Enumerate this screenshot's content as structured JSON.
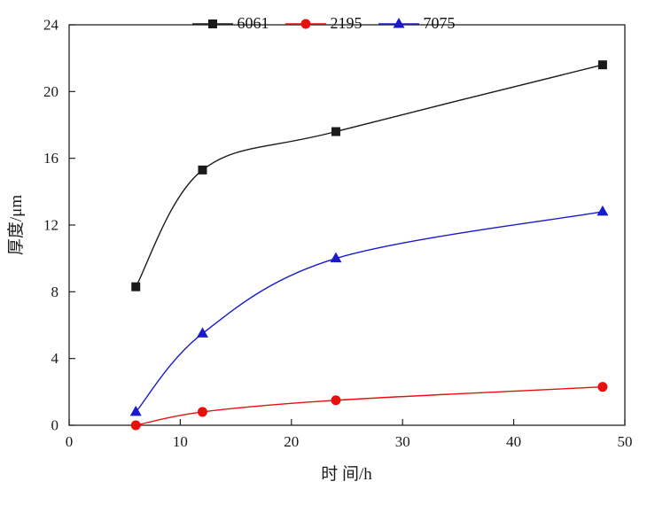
{
  "figure": {
    "background": "#ffffff"
  },
  "chart_data": {
    "type": "line",
    "title": "",
    "xlabel": "时 间/h",
    "ylabel": "厚度/μm",
    "xlim": [
      0,
      50
    ],
    "ylim": [
      0,
      24
    ],
    "xticks": [
      0,
      10,
      20,
      30,
      40,
      50
    ],
    "yticks": [
      0,
      4,
      8,
      12,
      16,
      20,
      24
    ],
    "x": [
      6,
      12,
      24,
      48
    ],
    "series": [
      {
        "name": "6061",
        "color": "#1a1a1a",
        "marker": "square",
        "values": [
          8.3,
          15.3,
          17.6,
          21.6
        ]
      },
      {
        "name": "2195",
        "color": "#e8100c",
        "marker": "circle",
        "values": [
          0.0,
          0.8,
          1.5,
          2.3
        ]
      },
      {
        "name": "7075",
        "color": "#1a1acc",
        "marker": "triangle",
        "values": [
          0.8,
          5.5,
          10.0,
          12.8
        ]
      }
    ],
    "legend_position": "top-center",
    "grid": false
  }
}
